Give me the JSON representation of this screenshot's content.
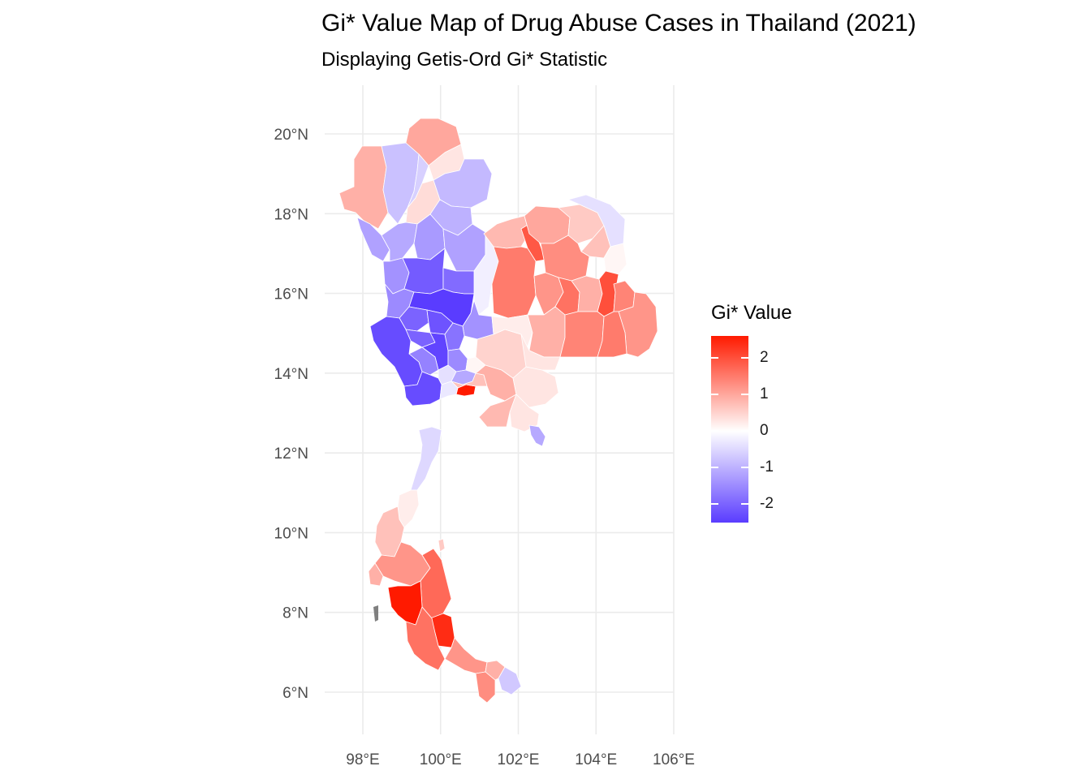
{
  "title": "Gi* Value Map of Drug Abuse Cases in Thailand (2021)",
  "subtitle": "Displaying Getis-Ord Gi* Statistic",
  "legend": {
    "title": "Gi* Value",
    "ticks": [
      "2",
      "1",
      "0",
      "-1",
      "-2"
    ],
    "colors": {
      "high": "#ff1a00",
      "mid": "#ffffff",
      "low": "#5a3cff"
    }
  },
  "chart_data": {
    "type": "choropleth",
    "title": "Gi* Value Map of Drug Abuse Cases in Thailand (2021)",
    "subtitle": "Displaying Getis-Ord Gi* Statistic",
    "x_ticks": [
      "98°E",
      "100°E",
      "102°E",
      "104°E",
      "106°E"
    ],
    "y_ticks": [
      "20°N",
      "18°N",
      "16°N",
      "14°N",
      "12°N",
      "10°N",
      "8°N",
      "6°N"
    ],
    "x_range": [
      97,
      106
    ],
    "y_range": [
      5,
      21
    ],
    "grid": true,
    "color_scale": {
      "min": -2.5,
      "max": 2.6,
      "low": "#5a3cff",
      "mid": "#ffffff",
      "high": "#ff1a00"
    },
    "legend_position": "right"
  }
}
